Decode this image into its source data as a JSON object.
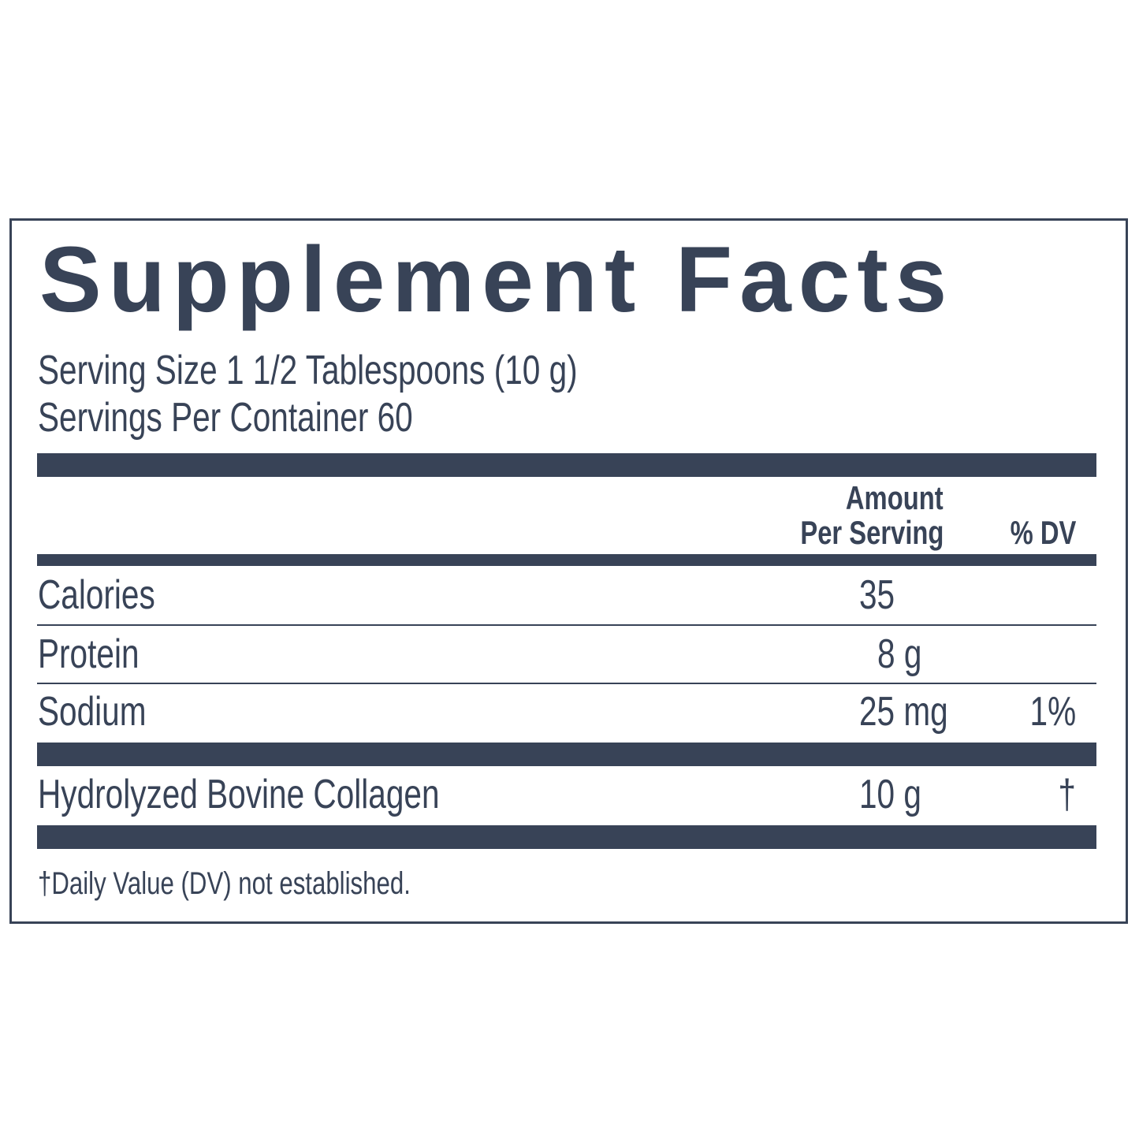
{
  "title": "Supplement Facts",
  "serving_size": "Serving Size 1 1/2 Tablespoons (10 g)",
  "servings_per_container": "Servings Per Container 60",
  "header": {
    "amount_line1": "Amount",
    "amount_line2": "Per Serving",
    "dv": "% DV"
  },
  "rows": [
    {
      "name": "Calories",
      "amount": "35",
      "dv": ""
    },
    {
      "name": "Protein",
      "amount": "8 g",
      "dv": ""
    },
    {
      "name": "Sodium",
      "amount": "25 mg",
      "dv": "1%"
    },
    {
      "name": "Hydrolyzed Bovine Collagen",
      "amount": "10 g",
      "dv": "†"
    }
  ],
  "footnote": "†Daily Value (DV) not established.",
  "colors": {
    "ink": "#384357",
    "background": "#ffffff"
  }
}
